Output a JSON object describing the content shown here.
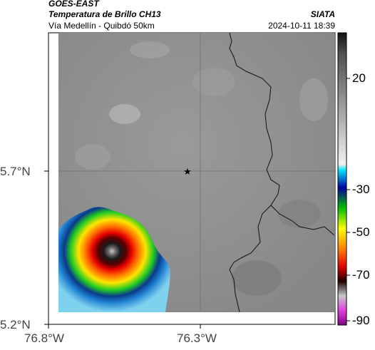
{
  "header": {
    "satellite": "GOES-EAST",
    "product": "Temperatura de Brillo CH13",
    "agency": "SIATA",
    "route": "Vía Medellín - Quibdó 50km",
    "datetime": "2024-10-11 18:39"
  },
  "axes": {
    "lat_labels": [
      "5.7°N",
      "5.2°N"
    ],
    "lon_labels": [
      "76.8°W",
      "76.3°W"
    ]
  },
  "colorbar": {
    "labels": [
      "20",
      "-30",
      "-50",
      "-70",
      "-90"
    ]
  },
  "map": {
    "marker": "star-icon",
    "colors": {
      "background_gray": "#8c8c8c",
      "cold_core": "#1a1a1a",
      "red": "#e60000",
      "yellow": "#ffee00",
      "green": "#22cc22",
      "blue": "#0a5fb4"
    }
  }
}
